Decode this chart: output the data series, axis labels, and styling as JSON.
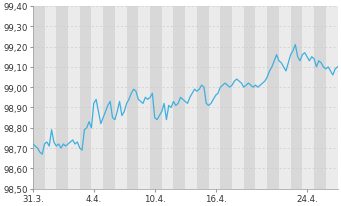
{
  "title": "",
  "ylabel": "",
  "xlabel": "",
  "ylim": [
    98.5,
    99.4
  ],
  "yticks": [
    98.5,
    98.6,
    98.7,
    98.8,
    98.9,
    99.0,
    99.1,
    99.2,
    99.3,
    99.4
  ],
  "ytick_labels": [
    "98,50",
    "98,60",
    "98,70",
    "98,80",
    "98,90",
    "99,00",
    "99,10",
    "99,20",
    "99,30",
    "99,40"
  ],
  "xtick_labels": [
    "31.3.",
    "4.4.",
    "10.4.",
    "16.4.",
    "24.4."
  ],
  "line_color": "#3db0e0",
  "bg_color": "#ffffff",
  "plot_bg_light": "#ebebeb",
  "plot_bg_dark": "#d8d8d8",
  "grid_color": "#cccccc",
  "line_width": 0.9,
  "n_points": 131,
  "stripe_period": 5,
  "values": [
    98.72,
    98.71,
    98.7,
    98.68,
    98.67,
    98.72,
    98.73,
    98.71,
    98.79,
    98.73,
    98.71,
    98.72,
    98.7,
    98.72,
    98.71,
    98.72,
    98.73,
    98.74,
    98.72,
    98.73,
    98.7,
    98.69,
    98.79,
    98.8,
    98.83,
    98.8,
    98.92,
    98.94,
    98.88,
    98.82,
    98.85,
    98.88,
    98.91,
    98.93,
    98.85,
    98.84,
    98.88,
    98.93,
    98.86,
    98.88,
    98.92,
    98.94,
    98.97,
    98.99,
    98.98,
    98.94,
    98.93,
    98.92,
    98.95,
    98.94,
    98.95,
    98.97,
    98.85,
    98.84,
    98.86,
    98.88,
    98.92,
    98.84,
    98.91,
    98.9,
    98.93,
    98.91,
    98.92,
    98.95,
    98.94,
    98.93,
    98.92,
    98.95,
    98.97,
    98.99,
    98.98,
    98.99,
    99.01,
    99.0,
    98.92,
    98.91,
    98.92,
    98.94,
    98.96,
    98.97,
    99.0,
    99.01,
    99.02,
    99.01,
    99.0,
    99.01,
    99.03,
    99.04,
    99.03,
    99.02,
    99.0,
    99.01,
    99.02,
    99.01,
    99.0,
    99.01,
    99.0,
    99.01,
    99.02,
    99.03,
    99.05,
    99.08,
    99.1,
    99.13,
    99.16,
    99.13,
    99.12,
    99.1,
    99.08,
    99.12,
    99.16,
    99.18,
    99.21,
    99.15,
    99.13,
    99.16,
    99.17,
    99.15,
    99.13,
    99.15,
    99.14,
    99.1,
    99.13,
    99.12,
    99.1,
    99.09,
    99.1,
    99.08,
    99.06,
    99.09,
    99.1
  ]
}
